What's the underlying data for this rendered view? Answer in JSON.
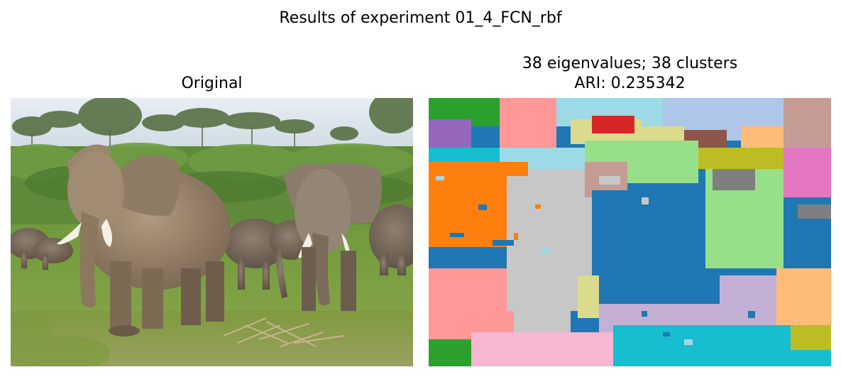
{
  "figure": {
    "suptitle": "Results of experiment 01_4_FCN_rbf"
  },
  "left_panel": {
    "title": "Original",
    "image_description": "photograph of a herd of elephants on grassland"
  },
  "right_panel": {
    "title_line1": "38 eigenvalues; 38 clusters",
    "title_line2": "ARI: 0.235342",
    "image_description": "cluster label map of the photograph"
  },
  "colors": {
    "background": "#ffffff",
    "text": "#000000",
    "cluster_palette": [
      "#1f77b4",
      "#aec7e8",
      "#ff7f0e",
      "#ffbb78",
      "#2ca02c",
      "#98df8a",
      "#d62728",
      "#ff9896",
      "#9467bd",
      "#c5b0d5",
      "#8c564b",
      "#c49c94",
      "#e377c2",
      "#f7b6d2",
      "#7f7f7f",
      "#c7c7c7",
      "#bcbd22",
      "#dbdb8d",
      "#17becf",
      "#9edae5"
    ]
  }
}
